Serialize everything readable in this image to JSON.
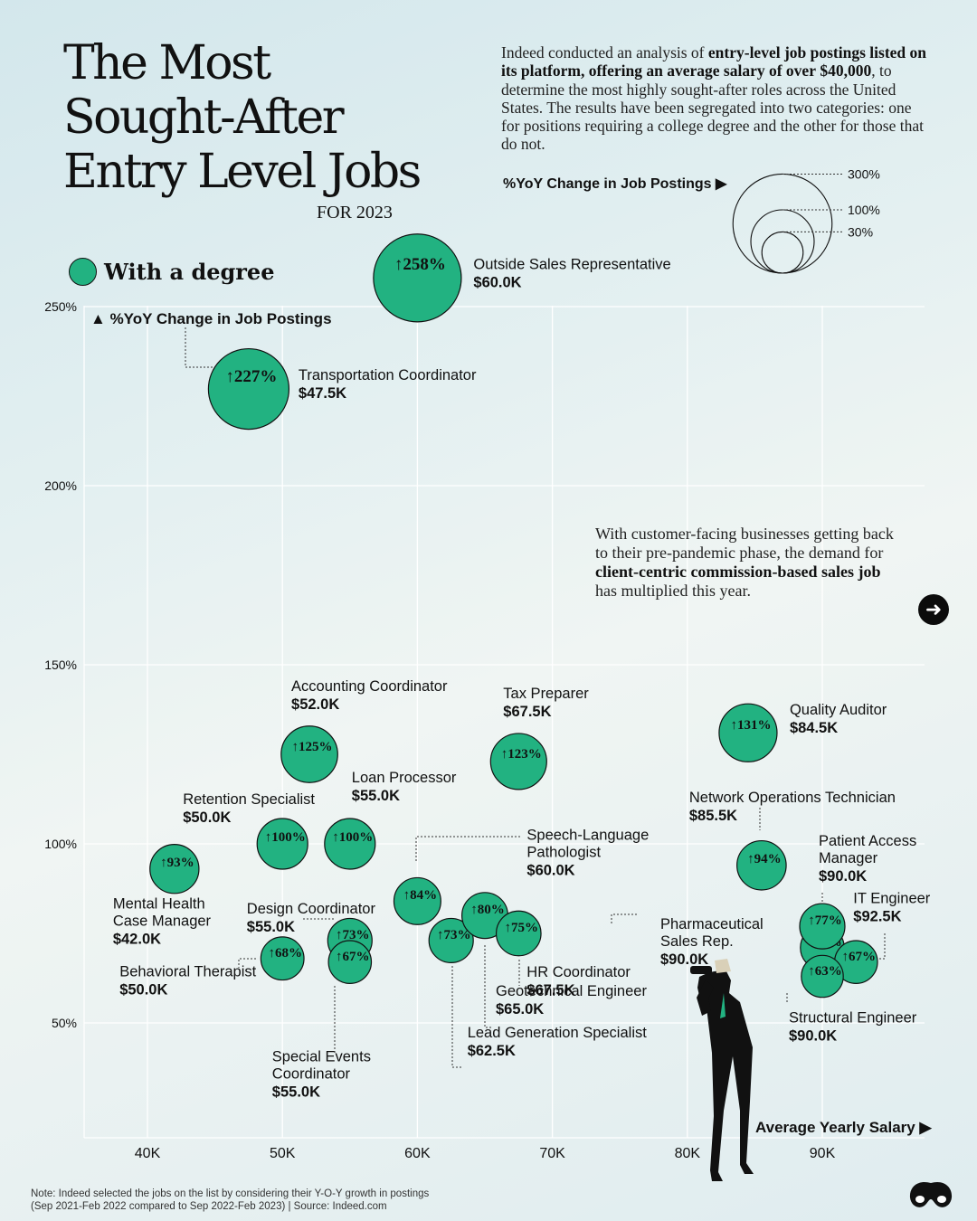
{
  "title": "The Most\nSought-After\nEntry Level Jobs",
  "title_year": "FOR 2023",
  "intro": {
    "p1": "Indeed conducted an analysis of ",
    "b1": "entry-level job postings listed on its platform, offering an average salary of over",
    "b2": "$40,000",
    "p2": ", to determine the most highly sought-after roles across the United States. The results have been segregated into two categories: one for positions requiring a college degree and the other for those that do not."
  },
  "size_legend": {
    "title": "%YoY Change in Job Postings",
    "levels": [
      300,
      100,
      30
    ],
    "labels": [
      "300%",
      "100%",
      "30%"
    ]
  },
  "series_legend": {
    "label": "With a degree",
    "color": "#22b281"
  },
  "annotation": {
    "p1": "With customer-facing businesses getting back to their pre-pandemic phase, the demand for ",
    "b1": "client-centric commission-based sales job",
    "p2": " has multiplied this year."
  },
  "yoy_axis_label": "%YoY Change in Job Postings",
  "x_axis_label": "Average Yearly Salary",
  "note": {
    "line1": "Note: Indeed selected the jobs on the list by considering their Y-O-Y growth in postings",
    "line2": "(Sep 2021-Feb 2022 compared to Sep 2022-Feb 2023) | Source: Indeed.com"
  },
  "colors": {
    "bubble": "#22b281",
    "text": "#111111",
    "grid": "#ffffff"
  },
  "icons": {
    "next": "arrow-right-icon",
    "logo": "brand-logo-icon",
    "figure": "person-with-binoculars-icon"
  },
  "chart_data": {
    "type": "scatter",
    "xlabel": "Average Yearly Salary",
    "ylabel": "%YoY Change in Job Postings",
    "xlim": [
      35000,
      97500
    ],
    "ylim": [
      18,
      258
    ],
    "xticks": [
      40000,
      50000,
      60000,
      70000,
      80000,
      90000
    ],
    "xtick_labels": [
      "40K",
      "50K",
      "60K",
      "70K",
      "80K",
      "90K"
    ],
    "yticks": [
      50,
      100,
      150,
      200,
      250
    ],
    "ytick_labels": [
      "50%",
      "100%",
      "150%",
      "200%",
      "250%"
    ],
    "points": [
      {
        "name": "Outside Sales Representative",
        "salary": 60000,
        "salary_label": "$60.0K",
        "yoy": 258,
        "yoy_label": "258%"
      },
      {
        "name": "Transportation Coordinator",
        "salary": 47500,
        "salary_label": "$47.5K",
        "yoy": 227,
        "yoy_label": "227%"
      },
      {
        "name": "Accounting Coordinator",
        "salary": 52000,
        "salary_label": "$52.0K",
        "yoy": 125,
        "yoy_label": "125%"
      },
      {
        "name": "Tax Preparer",
        "salary": 67500,
        "salary_label": "$67.5K",
        "yoy": 123,
        "yoy_label": "123%"
      },
      {
        "name": "Quality Auditor",
        "salary": 84500,
        "salary_label": "$84.5K",
        "yoy": 131,
        "yoy_label": "131%"
      },
      {
        "name": "Retention Specialist",
        "salary": 50000,
        "salary_label": "$50.0K",
        "yoy": 100,
        "yoy_label": "100%"
      },
      {
        "name": "Loan Processor",
        "salary": 55000,
        "salary_label": "$55.0K",
        "yoy": 100,
        "yoy_label": "100%"
      },
      {
        "name": "Mental Health Case Manager",
        "salary": 42000,
        "salary_label": "$42.0K",
        "yoy": 93,
        "yoy_label": "93%"
      },
      {
        "name": "Network Operations Technician",
        "salary": 85500,
        "salary_label": "$85.5K",
        "yoy": 94,
        "yoy_label": "94%"
      },
      {
        "name": "Speech-Language Pathologist",
        "salary": 60000,
        "salary_label": "$60.0K",
        "yoy": 84,
        "yoy_label": "84%"
      },
      {
        "name": "Design Coordinator",
        "salary": 55000,
        "salary_label": "$55.0K",
        "yoy": 73,
        "yoy_label": "73%"
      },
      {
        "name": "Behavioral Therapist",
        "salary": 50000,
        "salary_label": "$50.0K",
        "yoy": 68,
        "yoy_label": "68%"
      },
      {
        "name": "Special Events Coordinator",
        "salary": 55000,
        "salary_label": "$55.0K",
        "yoy": 67,
        "yoy_label": "67%"
      },
      {
        "name": "Lead Generation Specialist",
        "salary": 62500,
        "salary_label": "$62.5K",
        "yoy": 73,
        "yoy_label": "73%"
      },
      {
        "name": "Geotechnical Engineer",
        "salary": 65000,
        "salary_label": "$65.0K",
        "yoy": 80,
        "yoy_label": "80%"
      },
      {
        "name": "HR Coordinator",
        "salary": 67500,
        "salary_label": "$67.5K",
        "yoy": 75,
        "yoy_label": "75%"
      },
      {
        "name": "Pharmaceutical Sales Rep.",
        "salary": 90000,
        "salary_label": "$90.0K",
        "yoy": 71,
        "yoy_label": "71%"
      },
      {
        "name": "Patient Access Manager",
        "salary": 90000,
        "salary_label": "$90.0K",
        "yoy": 77,
        "yoy_label": "77%"
      },
      {
        "name": "IT Engineer",
        "salary": 92500,
        "salary_label": "$92.5K",
        "yoy": 67,
        "yoy_label": "67%"
      },
      {
        "name": "Structural Engineer",
        "salary": 90000,
        "salary_label": "$90.0K",
        "yoy": 63,
        "yoy_label": "63%"
      }
    ]
  }
}
